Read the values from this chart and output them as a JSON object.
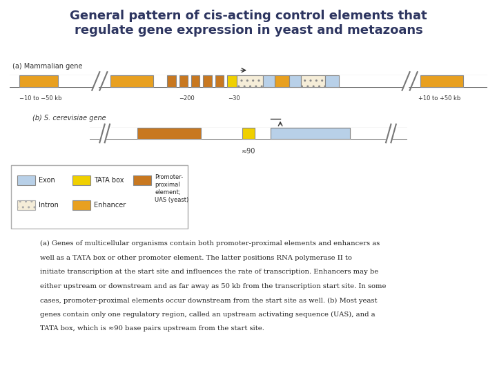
{
  "title_line1": "General pattern of cis-acting control elements that",
  "title_line2": "regulate gene expression in yeast and metazoans",
  "title_color": "#2d3560",
  "title_fontsize": 13,
  "bg_color": "#ffffff",
  "colors": {
    "exon": "#b8d0e8",
    "tata": "#f0d000",
    "promoter_proximal": "#c87820",
    "intron_fill": "#f5edd8",
    "enhancer": "#e8a020",
    "line": "#666666",
    "bar_edge": "#888888"
  },
  "caption": "(a) Genes of multicellular organisms contain both promoter-proximal elements and enhancers as\nwell as a TATA box or other promoter element. The latter positions RNA polymerase II to\ninitiate transcription at the start site and influences the rate of transcription. Enhancers may be\neither upstream or downstream and as far away as 50 kb from the transcription start site. In some\ncases, promoter-proximal elements occur downstream from the start site as well. (b) Most yeast\ngenes contain only one regulatory region, called an upstream activating sequence (UAS), and a\nTATA box, which is ≈90 base pairs upstream from the start site."
}
